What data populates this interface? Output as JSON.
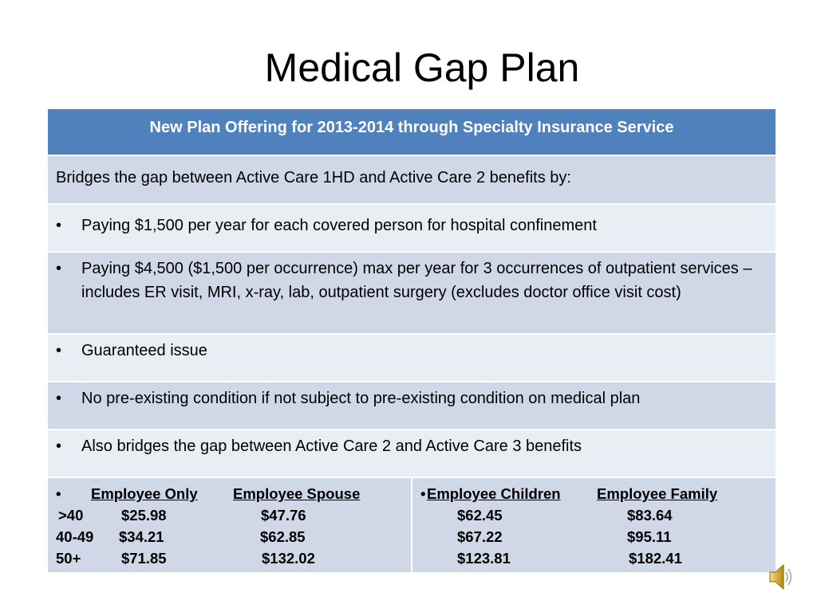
{
  "title": "Medical Gap Plan",
  "header": "New Plan Offering for 2013-2014 through Specialty Insurance Service",
  "intro": "Bridges the gap between Active Care 1HD and Active Care 2 benefits by:",
  "bullets": [
    "Paying $1,500 per year for each covered person for hospital confinement",
    "Paying $4,500 ($1,500 per occurrence) max per year for 3 occurrences of outpatient services – includes ER visit, MRI, x-ray, lab, outpatient surgery (excludes doctor office visit cost)",
    "Guaranteed issue",
    "No pre-existing condition if not subject to pre-existing condition on medical plan",
    "Also bridges the gap between Active Care 2 and Active Care 3 benefits"
  ],
  "bullet_glyph": "•",
  "rates": {
    "columns": [
      "Employee Only",
      "Employee Spouse",
      "Employee Children",
      "Employee Family"
    ],
    "rows": [
      {
        "age": ">40",
        "values": [
          "$25.98",
          "$47.76",
          "$62.45",
          "$83.64"
        ]
      },
      {
        "age": "40-49",
        "values": [
          "$34.21",
          "$62.85",
          "$67.22",
          "$95.11"
        ]
      },
      {
        "age": "50+",
        "values": [
          "$71.85",
          "$132.02",
          "$123.81",
          "$182.41"
        ]
      }
    ]
  },
  "colors": {
    "header": "#4f81bd",
    "row_dark": "#d0d8e8",
    "row_light": "#e9edf4"
  },
  "icon": "speaker-icon"
}
